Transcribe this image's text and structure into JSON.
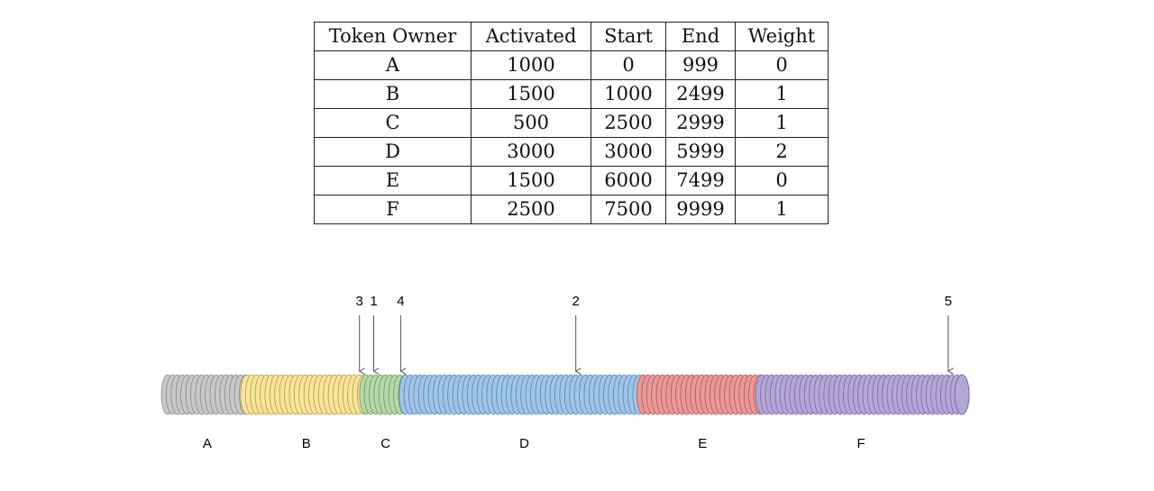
{
  "table": {
    "headers": [
      "Token Owner",
      "Activated",
      "Start",
      "End",
      "Weight"
    ],
    "rows": [
      [
        "A",
        "1000",
        "0",
        "999",
        "0"
      ],
      [
        "B",
        "1500",
        "1000",
        "2499",
        "1"
      ],
      [
        "C",
        "500",
        "2500",
        "2999",
        "1"
      ],
      [
        "D",
        "3000",
        "3000",
        "5999",
        "2"
      ],
      [
        "E",
        "1500",
        "6000",
        "7499",
        "0"
      ],
      [
        "F",
        "2500",
        "7500",
        "9999",
        "1"
      ]
    ]
  },
  "diagram": {
    "segments": [
      {
        "label": "A",
        "start": 0,
        "end": 999,
        "fill": "#c8c8c8",
        "stroke": "#8a8a8a"
      },
      {
        "label": "B",
        "start": 1000,
        "end": 2499,
        "fill": "#fbe59a",
        "stroke": "#b09a4a"
      },
      {
        "label": "C",
        "start": 2500,
        "end": 2999,
        "fill": "#b6d7a8",
        "stroke": "#6f9a5e"
      },
      {
        "label": "D",
        "start": 3000,
        "end": 5999,
        "fill": "#9fc5e8",
        "stroke": "#5d86ad"
      },
      {
        "label": "E",
        "start": 6000,
        "end": 7499,
        "fill": "#ea9999",
        "stroke": "#b05a5a"
      },
      {
        "label": "F",
        "start": 7500,
        "end": 9999,
        "fill": "#b4a7d6",
        "stroke": "#786aa5"
      }
    ],
    "markers": [
      {
        "label": "3",
        "position": 2420
      },
      {
        "label": "1",
        "position": 2600
      },
      {
        "label": "4",
        "position": 2940
      },
      {
        "label": "2",
        "position": 5150
      },
      {
        "label": "5",
        "position": 9850
      }
    ]
  }
}
